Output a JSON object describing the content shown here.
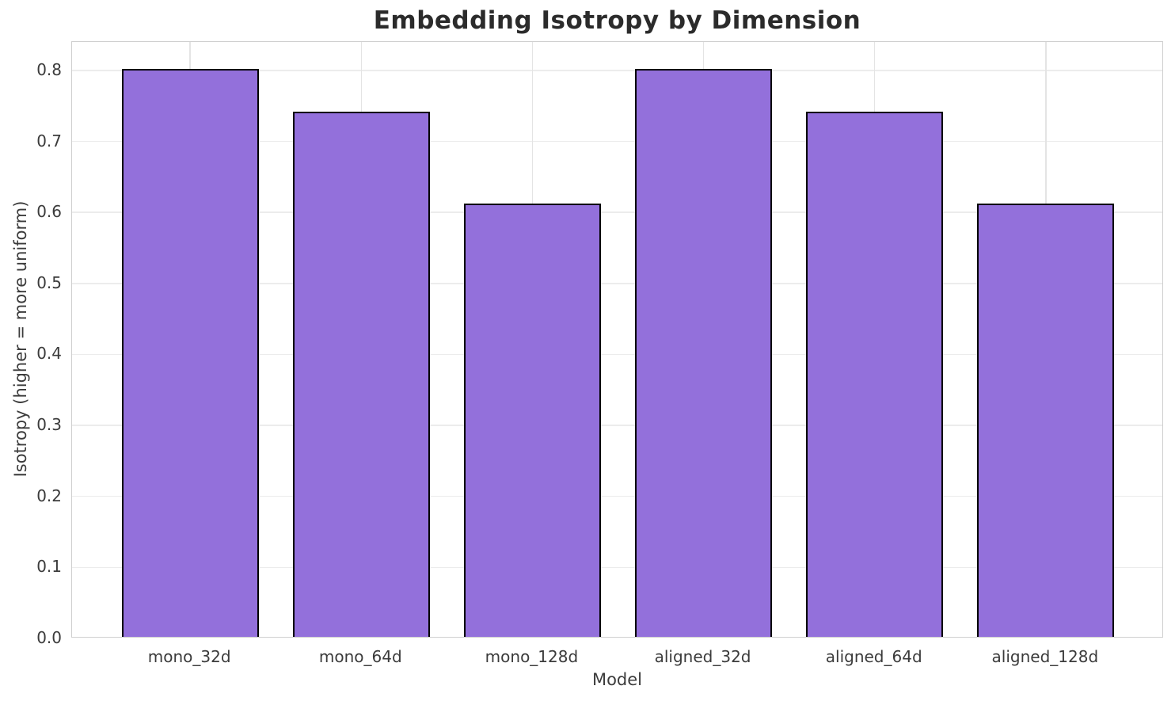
{
  "chart_data": {
    "type": "bar",
    "title": "Embedding Isotropy by Dimension",
    "xlabel": "Model",
    "ylabel": "Isotropy (higher = more uniform)",
    "categories": [
      "mono_32d",
      "mono_64d",
      "mono_128d",
      "aligned_32d",
      "aligned_64d",
      "aligned_128d"
    ],
    "values": [
      0.8,
      0.74,
      0.61,
      0.8,
      0.74,
      0.61
    ],
    "ylim": [
      0,
      0.84
    ],
    "yticks": [
      0.0,
      0.1,
      0.2,
      0.3,
      0.4,
      0.5,
      0.6,
      0.7,
      0.8
    ],
    "ytick_labels": [
      "0.0",
      "0.1",
      "0.2",
      "0.3",
      "0.4",
      "0.5",
      "0.6",
      "0.7",
      "0.8"
    ],
    "grid": true,
    "legend": "none",
    "bar_color": "#9370DB",
    "bar_edge_color": "#000000",
    "grid_color": "#ececec",
    "spine_color": "#cfcfcf",
    "tick_text_color": "#3b3b3b",
    "title_color": "#2b2b2b",
    "background_color": "#ffffff"
  }
}
